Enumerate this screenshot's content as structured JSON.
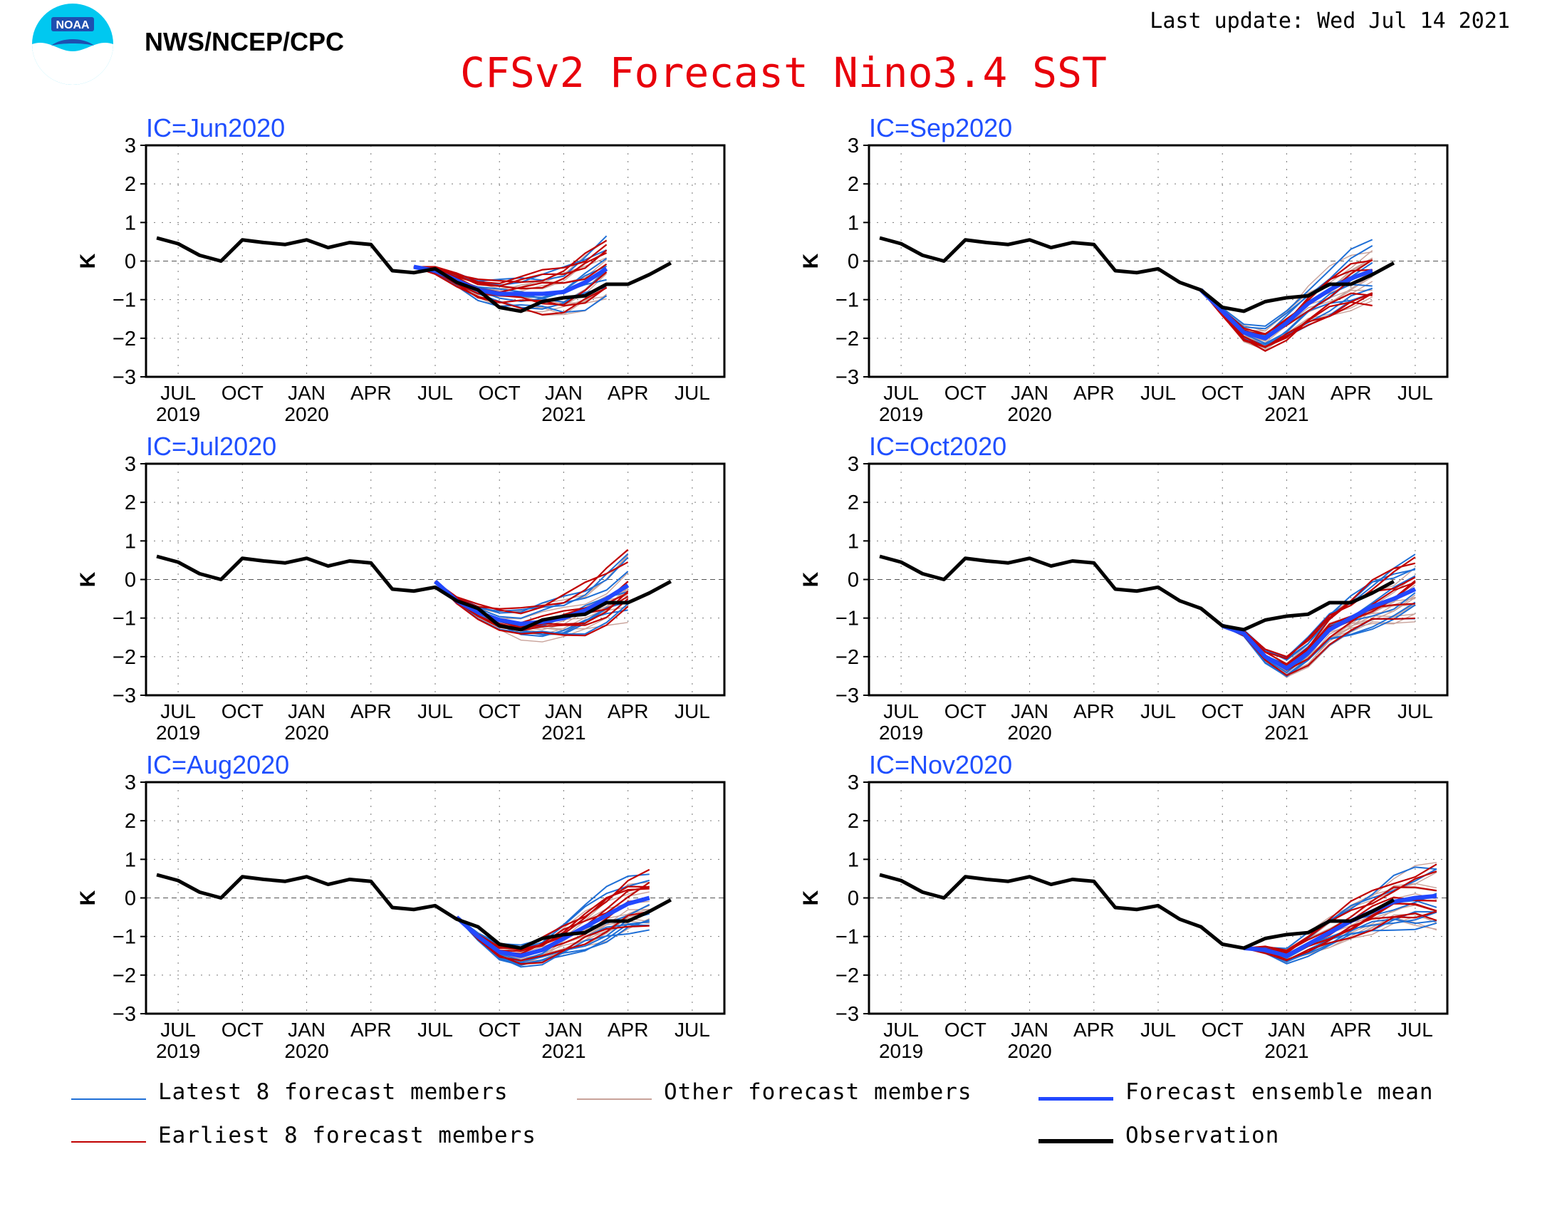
{
  "header": {
    "agency": "NWS/NCEP/CPC",
    "logo_text": "NOAA",
    "updated": "Last update: Wed Jul 14 2021",
    "title": "CFSv2 Forecast Nino3.4 SST"
  },
  "colors": {
    "title": "#e8000b",
    "panel_title": "#1f4fff",
    "latest": "#1f6fd6",
    "earliest": "#c00000",
    "other": "#c8a29a",
    "mean": "#2248ff",
    "observation": "#000000"
  },
  "legend": {
    "latest": "Latest 8 forecast members",
    "other": "Other forecast members",
    "mean": "Forecast ensemble mean",
    "earliest": "Earliest 8 forecast members",
    "observation": "Observation"
  },
  "chart_data": [
    {
      "type": "line",
      "title": "IC=Jun2020",
      "ylabel": "K",
      "ylim": [
        -3,
        3
      ],
      "yticks": [
        3,
        2,
        1,
        0,
        -1,
        -2,
        -3
      ],
      "xticks": [
        "JUL",
        "OCT",
        "JAN",
        "APR",
        "JUL",
        "OCT",
        "JAN",
        "APR",
        "JUL"
      ],
      "xyears": [
        "2019",
        "2020",
        "2021"
      ],
      "grid": true,
      "series": [
        {
          "name": "Observation",
          "start": "2019-06",
          "values": [
            0.6,
            0.45,
            0.15,
            0.0,
            0.55,
            0.48,
            0.43,
            0.55,
            0.35,
            0.48,
            0.43,
            -0.25,
            -0.3,
            -0.2,
            -0.55,
            -0.75,
            -1.2,
            -1.3,
            -1.05,
            -0.95,
            -0.9,
            -0.6,
            -0.6,
            -0.35,
            -0.05
          ]
        },
        {
          "name": "Forecast ensemble mean",
          "start": "2020-06",
          "values": [
            -0.15,
            -0.25,
            -0.5,
            -0.75,
            -0.85,
            -0.85,
            -0.85,
            -0.8,
            -0.55,
            -0.2
          ]
        }
      ]
    },
    {
      "type": "line",
      "title": "IC=Sep2020",
      "ylabel": "K",
      "ylim": [
        -3,
        3
      ],
      "yticks": [
        3,
        2,
        1,
        0,
        -1,
        -2,
        -3
      ],
      "xticks": [
        "JUL",
        "OCT",
        "JAN",
        "APR",
        "JUL",
        "OCT",
        "JAN",
        "APR",
        "JUL"
      ],
      "xyears": [
        "2019",
        "2020",
        "2021"
      ],
      "grid": true,
      "series": [
        {
          "name": "Observation",
          "start": "2019-06",
          "values": [
            0.6,
            0.45,
            0.15,
            0.0,
            0.55,
            0.48,
            0.43,
            0.55,
            0.35,
            0.48,
            0.43,
            -0.25,
            -0.3,
            -0.2,
            -0.55,
            -0.75,
            -1.2,
            -1.3,
            -1.05,
            -0.95,
            -0.9,
            -0.6,
            -0.6,
            -0.35,
            -0.05
          ]
        },
        {
          "name": "Forecast ensemble mean",
          "start": "2020-09",
          "values": [
            -0.75,
            -1.3,
            -1.85,
            -2.0,
            -1.6,
            -1.1,
            -0.75,
            -0.45,
            -0.25
          ]
        }
      ]
    },
    {
      "type": "line",
      "title": "IC=Jul2020",
      "ylabel": "K",
      "ylim": [
        -3,
        3
      ],
      "yticks": [
        3,
        2,
        1,
        0,
        -1,
        -2,
        -3
      ],
      "xticks": [
        "JUL",
        "OCT",
        "JAN",
        "APR",
        "JUL",
        "OCT",
        "JAN",
        "APR",
        "JUL"
      ],
      "xyears": [
        "2019",
        "2020",
        "2021"
      ],
      "grid": true,
      "series": [
        {
          "name": "Observation",
          "start": "2019-06",
          "values": [
            0.6,
            0.45,
            0.15,
            0.0,
            0.55,
            0.48,
            0.43,
            0.55,
            0.35,
            0.48,
            0.43,
            -0.25,
            -0.3,
            -0.2,
            -0.55,
            -0.75,
            -1.2,
            -1.3,
            -1.05,
            -0.95,
            -0.9,
            -0.6,
            -0.6,
            -0.35,
            -0.05
          ]
        },
        {
          "name": "Forecast ensemble mean",
          "start": "2020-07",
          "values": [
            -0.05,
            -0.55,
            -0.85,
            -1.05,
            -1.15,
            -1.1,
            -1.0,
            -0.8,
            -0.5,
            -0.15
          ]
        }
      ]
    },
    {
      "type": "line",
      "title": "IC=Oct2020",
      "ylabel": "K",
      "ylim": [
        -3,
        3
      ],
      "yticks": [
        3,
        2,
        1,
        0,
        -1,
        -2,
        -3
      ],
      "xticks": [
        "JUL",
        "OCT",
        "JAN",
        "APR",
        "JUL",
        "OCT",
        "JAN",
        "APR",
        "JUL"
      ],
      "xyears": [
        "2019",
        "2020",
        "2021"
      ],
      "grid": true,
      "series": [
        {
          "name": "Observation",
          "start": "2019-06",
          "values": [
            0.6,
            0.45,
            0.15,
            0.0,
            0.55,
            0.48,
            0.43,
            0.55,
            0.35,
            0.48,
            0.43,
            -0.25,
            -0.3,
            -0.2,
            -0.55,
            -0.75,
            -1.2,
            -1.3,
            -1.05,
            -0.95,
            -0.9,
            -0.6,
            -0.6,
            -0.35,
            -0.05
          ]
        },
        {
          "name": "Forecast ensemble mean",
          "start": "2020-10",
          "values": [
            -1.2,
            -1.4,
            -2.0,
            -2.3,
            -1.9,
            -1.3,
            -1.0,
            -0.7,
            -0.5,
            -0.25
          ]
        }
      ]
    },
    {
      "type": "line",
      "title": "IC=Aug2020",
      "ylabel": "K",
      "ylim": [
        -3,
        3
      ],
      "yticks": [
        3,
        2,
        1,
        0,
        -1,
        -2,
        -3
      ],
      "xticks": [
        "JUL",
        "OCT",
        "JAN",
        "APR",
        "JUL",
        "OCT",
        "JAN",
        "APR",
        "JUL"
      ],
      "xyears": [
        "2019",
        "2020",
        "2021"
      ],
      "grid": true,
      "series": [
        {
          "name": "Observation",
          "start": "2019-06",
          "values": [
            0.6,
            0.45,
            0.15,
            0.0,
            0.55,
            0.48,
            0.43,
            0.55,
            0.35,
            0.48,
            0.43,
            -0.25,
            -0.3,
            -0.2,
            -0.55,
            -0.75,
            -1.2,
            -1.3,
            -1.05,
            -0.95,
            -0.9,
            -0.6,
            -0.6,
            -0.35,
            -0.05
          ]
        },
        {
          "name": "Forecast ensemble mean",
          "start": "2020-08",
          "values": [
            -0.5,
            -1.0,
            -1.4,
            -1.5,
            -1.35,
            -1.05,
            -0.75,
            -0.45,
            -0.15,
            0.0
          ]
        }
      ]
    },
    {
      "type": "line",
      "title": "IC=Nov2020",
      "ylabel": "K",
      "ylim": [
        -3,
        3
      ],
      "yticks": [
        3,
        2,
        1,
        0,
        -1,
        -2,
        -3
      ],
      "xticks": [
        "JUL",
        "OCT",
        "JAN",
        "APR",
        "JUL",
        "OCT",
        "JAN",
        "APR",
        "JUL"
      ],
      "xyears": [
        "2019",
        "2020",
        "2021"
      ],
      "grid": true,
      "series": [
        {
          "name": "Observation",
          "start": "2019-06",
          "values": [
            0.6,
            0.45,
            0.15,
            0.0,
            0.55,
            0.48,
            0.43,
            0.55,
            0.35,
            0.48,
            0.43,
            -0.25,
            -0.3,
            -0.2,
            -0.55,
            -0.75,
            -1.2,
            -1.3,
            -1.05,
            -0.95,
            -0.9,
            -0.6,
            -0.6,
            -0.35,
            -0.05
          ]
        },
        {
          "name": "Forecast ensemble mean",
          "start": "2020-11",
          "values": [
            -1.3,
            -1.35,
            -1.5,
            -1.2,
            -0.9,
            -0.6,
            -0.35,
            -0.1,
            0.0,
            0.05
          ]
        }
      ]
    }
  ]
}
